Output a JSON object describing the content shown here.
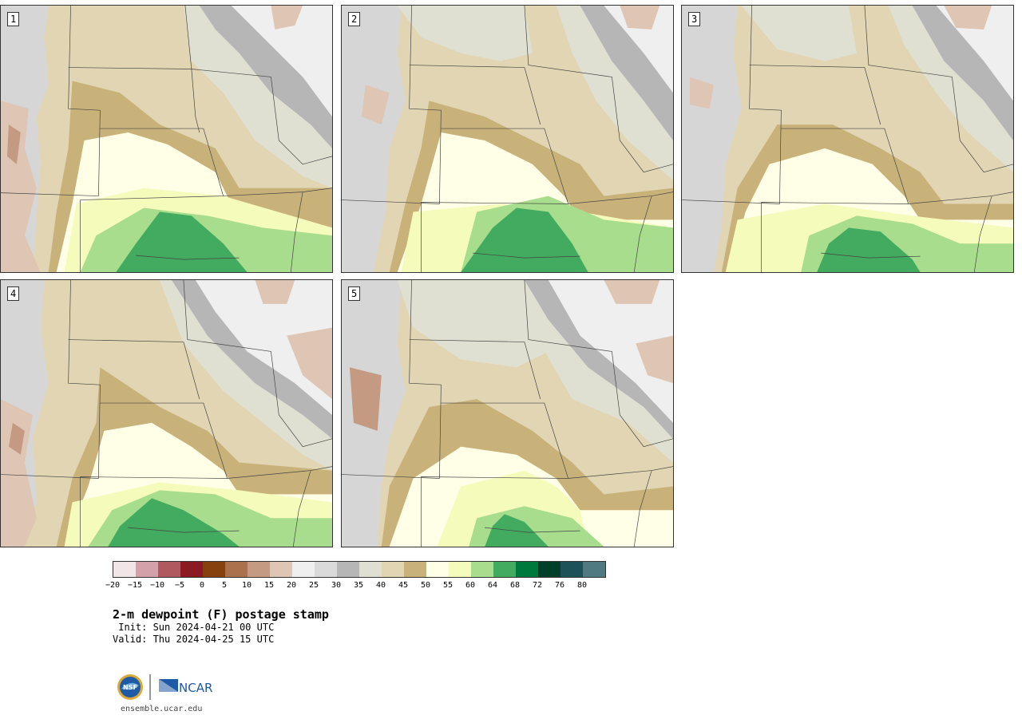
{
  "panels": [
    {
      "label": "1"
    },
    {
      "label": "2"
    },
    {
      "label": "3"
    },
    {
      "label": "4"
    },
    {
      "label": "5"
    }
  ],
  "colorbar": {
    "colors": [
      "#f1e5e7",
      "#d2a1a9",
      "#b0595f",
      "#8b1a22",
      "#86410f",
      "#a9714c",
      "#c49b82",
      "#dfc5b4",
      "#efefef",
      "#dadada",
      "#b6b6b6",
      "#e0e0d2",
      "#e2d5b3",
      "#c9b27a",
      "#ffffe8",
      "#f5fbba",
      "#a8dd8e",
      "#42ab5f",
      "#007a3c",
      "#00402b",
      "#1c5258",
      "#4f7a82"
    ],
    "ticks": [
      "−20",
      "−15",
      "−10",
      "−5",
      "0",
      "5",
      "10",
      "15",
      "20",
      "25",
      "30",
      "35",
      "40",
      "45",
      "50",
      "55",
      "60",
      "64",
      "68",
      "72",
      "76",
      "80"
    ]
  },
  "title": "2-m dewpoint (F) postage stamp",
  "init": " Init: Sun 2024-04-21 00 UTC",
  "valid": "Valid: Thu 2024-04-25 15 UTC",
  "logos": {
    "nsf": "NSF",
    "ncar": "NCAR"
  },
  "site": "ensemble.ucar.edu"
}
